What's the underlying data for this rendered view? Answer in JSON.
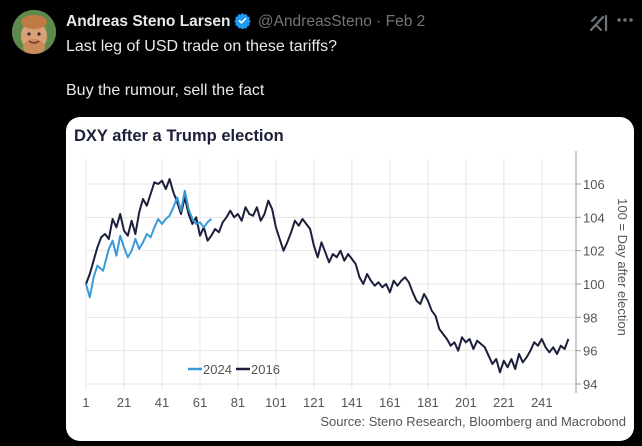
{
  "tweet": {
    "author_name": "Andreas Steno Larsen",
    "handle": "@AndreasSteno",
    "separator": "·",
    "date": "Feb 2",
    "text_line1": "Last leg of USD trade on these tariffs?",
    "text_line2": "Buy the rumour, sell the fact",
    "icons": {
      "verified": "verified-badge-icon",
      "grok": "grok-icon",
      "more": "more-options-icon"
    },
    "colors": {
      "verified": "#1d9bf0",
      "background": "#000000",
      "text": "#e7e9ea",
      "muted": "#71767b"
    }
  },
  "chart_data": {
    "type": "line",
    "title": "DXY after a Trump election",
    "ylabel": "100 = Day after election",
    "source": "Source: Steno Research, Bloomberg and Macrobond",
    "xlim": [
      1,
      259
    ],
    "ylim": [
      93.7,
      107.5
    ],
    "x_ticks": [
      1,
      21,
      41,
      61,
      81,
      101,
      121,
      141,
      161,
      181,
      201,
      221,
      241
    ],
    "y_ticks": [
      94,
      96,
      98,
      100,
      102,
      104,
      106
    ],
    "grid": true,
    "legend_position": "bottom-left",
    "series": [
      {
        "name": "2024",
        "color": "#3a9ad9",
        "points": [
          [
            1,
            100
          ],
          [
            3,
            99.2
          ],
          [
            5,
            100.4
          ],
          [
            7,
            101.1
          ],
          [
            10,
            100.8
          ],
          [
            13,
            102.1
          ],
          [
            15,
            102.6
          ],
          [
            17,
            101.7
          ],
          [
            19,
            102.9
          ],
          [
            21,
            102.2
          ],
          [
            23,
            101.6
          ],
          [
            25,
            102.0
          ],
          [
            27,
            102.7
          ],
          [
            29,
            102.1
          ],
          [
            31,
            102.5
          ],
          [
            33,
            103.0
          ],
          [
            35,
            102.8
          ],
          [
            37,
            103.4
          ],
          [
            39,
            103.9
          ],
          [
            41,
            103.6
          ],
          [
            43,
            103.9
          ],
          [
            45,
            104.1
          ],
          [
            47,
            104.6
          ],
          [
            49,
            105.2
          ],
          [
            51,
            104.4
          ],
          [
            53,
            105.6
          ],
          [
            55,
            104.5
          ],
          [
            57,
            103.9
          ],
          [
            59,
            103.6
          ],
          [
            61,
            103.7
          ],
          [
            63,
            103.4
          ],
          [
            65,
            103.7
          ],
          [
            67,
            103.9
          ]
        ]
      },
      {
        "name": "2016",
        "color": "#1b1f3b",
        "points": [
          [
            1,
            100
          ],
          [
            3,
            100.6
          ],
          [
            5,
            101.4
          ],
          [
            7,
            102.2
          ],
          [
            9,
            102.8
          ],
          [
            11,
            103.0
          ],
          [
            13,
            102.7
          ],
          [
            15,
            103.9
          ],
          [
            17,
            103.4
          ],
          [
            19,
            104.2
          ],
          [
            21,
            103.2
          ],
          [
            23,
            102.9
          ],
          [
            25,
            103.8
          ],
          [
            27,
            103.0
          ],
          [
            29,
            104.3
          ],
          [
            31,
            105.1
          ],
          [
            33,
            104.7
          ],
          [
            35,
            105.4
          ],
          [
            37,
            106.1
          ],
          [
            39,
            106.0
          ],
          [
            41,
            106.2
          ],
          [
            43,
            105.7
          ],
          [
            45,
            106.3
          ],
          [
            47,
            105.5
          ],
          [
            49,
            104.9
          ],
          [
            51,
            104.2
          ],
          [
            53,
            105.2
          ],
          [
            55,
            104.2
          ],
          [
            57,
            103.6
          ],
          [
            59,
            104.0
          ],
          [
            61,
            102.9
          ],
          [
            63,
            103.4
          ],
          [
            65,
            102.6
          ],
          [
            67,
            102.9
          ],
          [
            69,
            103.3
          ],
          [
            71,
            103.1
          ],
          [
            73,
            103.7
          ],
          [
            75,
            104.0
          ],
          [
            77,
            104.4
          ],
          [
            79,
            104.0
          ],
          [
            81,
            104.2
          ],
          [
            83,
            103.8
          ],
          [
            85,
            104.6
          ],
          [
            87,
            104.2
          ],
          [
            89,
            104.1
          ],
          [
            91,
            104.6
          ],
          [
            93,
            103.8
          ],
          [
            95,
            104.2
          ],
          [
            97,
            105.0
          ],
          [
            99,
            104.5
          ],
          [
            101,
            103.4
          ],
          [
            103,
            102.7
          ],
          [
            105,
            102.0
          ],
          [
            107,
            102.5
          ],
          [
            109,
            103.1
          ],
          [
            111,
            103.8
          ],
          [
            113,
            103.5
          ],
          [
            115,
            103.9
          ],
          [
            117,
            103.6
          ],
          [
            119,
            103.3
          ],
          [
            121,
            102.3
          ],
          [
            123,
            101.6
          ],
          [
            125,
            102.5
          ],
          [
            127,
            101.9
          ],
          [
            129,
            101.3
          ],
          [
            131,
            101.8
          ],
          [
            133,
            101.6
          ],
          [
            135,
            102.0
          ],
          [
            137,
            101.4
          ],
          [
            139,
            101.8
          ],
          [
            141,
            101.5
          ],
          [
            143,
            101.2
          ],
          [
            145,
            100.4
          ],
          [
            147,
            100.0
          ],
          [
            149,
            100.6
          ],
          [
            151,
            100.2
          ],
          [
            153,
            99.9
          ],
          [
            155,
            100.1
          ],
          [
            157,
            99.8
          ],
          [
            159,
            100.0
          ],
          [
            161,
            99.5
          ],
          [
            163,
            100.2
          ],
          [
            165,
            99.9
          ],
          [
            167,
            100.2
          ],
          [
            169,
            100.4
          ],
          [
            171,
            100.1
          ],
          [
            173,
            99.5
          ],
          [
            175,
            99.0
          ],
          [
            177,
            98.8
          ],
          [
            179,
            99.4
          ],
          [
            181,
            99.0
          ],
          [
            183,
            98.4
          ],
          [
            185,
            98.1
          ],
          [
            187,
            97.3
          ],
          [
            189,
            97.0
          ],
          [
            191,
            96.7
          ],
          [
            193,
            96.3
          ],
          [
            195,
            96.5
          ],
          [
            197,
            96.0
          ],
          [
            199,
            96.8
          ],
          [
            201,
            96.5
          ],
          [
            203,
            96.7
          ],
          [
            205,
            96.1
          ],
          [
            207,
            96.6
          ],
          [
            209,
            96.4
          ],
          [
            211,
            96.2
          ],
          [
            213,
            95.7
          ],
          [
            215,
            95.2
          ],
          [
            217,
            95.5
          ],
          [
            219,
            94.7
          ],
          [
            221,
            95.4
          ],
          [
            223,
            95.0
          ],
          [
            225,
            95.5
          ],
          [
            227,
            94.9
          ],
          [
            229,
            95.8
          ],
          [
            231,
            95.3
          ],
          [
            233,
            95.6
          ],
          [
            235,
            96.0
          ],
          [
            237,
            96.5
          ],
          [
            239,
            96.3
          ],
          [
            241,
            96.7
          ],
          [
            243,
            96.2
          ],
          [
            245,
            95.9
          ],
          [
            247,
            96.2
          ],
          [
            249,
            95.8
          ],
          [
            251,
            96.3
          ],
          [
            253,
            96.1
          ],
          [
            255,
            96.7
          ]
        ]
      }
    ]
  }
}
